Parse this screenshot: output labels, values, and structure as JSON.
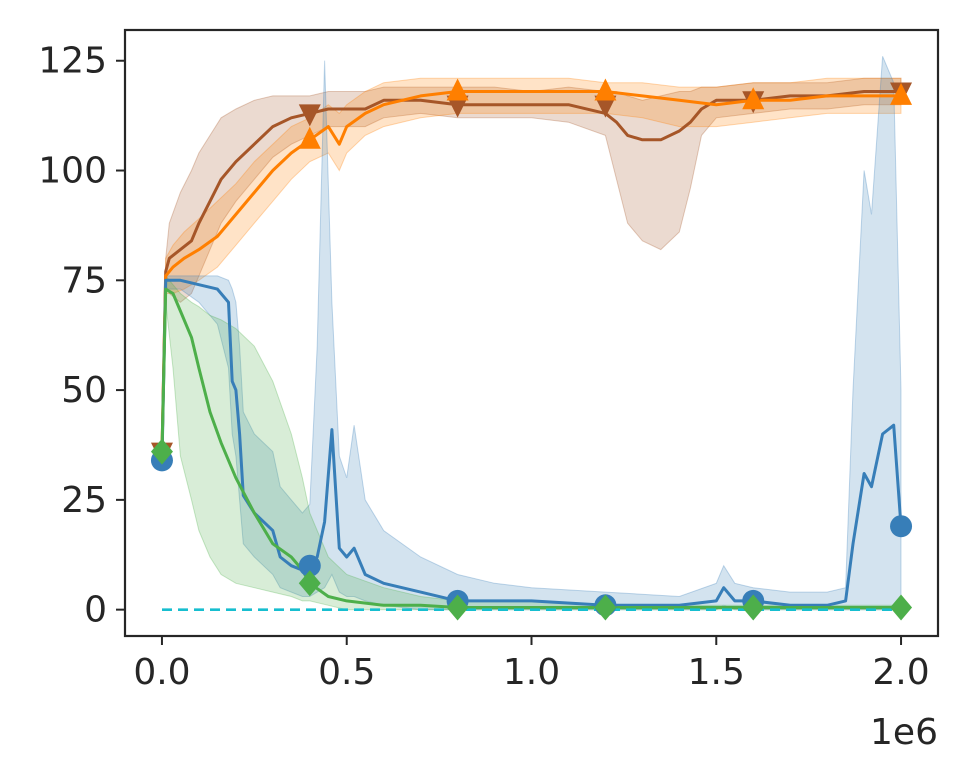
{
  "chart_data": {
    "type": "line",
    "title": "",
    "xlabel": "",
    "ylabel": "",
    "x_offset_text": "1e6",
    "xlim": [
      -0.1,
      2.1
    ],
    "ylim": [
      -6,
      132
    ],
    "xticks": [
      0.0,
      0.5,
      1.0,
      1.5,
      2.0
    ],
    "xtick_labels": [
      "0.0",
      "0.5",
      "1.0",
      "1.5",
      "2.0"
    ],
    "yticks": [
      0,
      25,
      50,
      75,
      100,
      125
    ],
    "ytick_labels": [
      "0",
      "25",
      "50",
      "75",
      "100",
      "125"
    ],
    "grid": false,
    "legend": "none",
    "series": [
      {
        "color": "#a65628",
        "marker": "triangle-down",
        "x": [
          0,
          0.01,
          0.02,
          0.05,
          0.08,
          0.1,
          0.13,
          0.16,
          0.2,
          0.25,
          0.3,
          0.35,
          0.4,
          0.45,
          0.5,
          0.55,
          0.6,
          0.7,
          0.8,
          0.9,
          1.0,
          1.1,
          1.2,
          1.23,
          1.26,
          1.3,
          1.35,
          1.4,
          1.43,
          1.46,
          1.5,
          1.6,
          1.7,
          1.8,
          1.9,
          2.0
        ],
        "y": [
          36,
          77,
          80,
          82,
          84,
          88,
          93,
          98,
          102,
          106,
          110,
          112,
          113,
          114,
          114,
          114,
          116,
          116,
          115,
          115,
          115,
          115,
          113,
          111,
          108,
          107,
          107,
          109,
          111,
          114,
          116,
          116,
          117,
          117,
          118,
          118
        ],
        "lower": [
          36,
          74,
          72,
          70,
          72,
          76,
          82,
          88,
          93,
          98,
          103,
          106,
          108,
          110,
          110,
          110,
          112,
          113,
          112,
          112,
          112,
          111,
          108,
          98,
          88,
          84,
          82,
          86,
          96,
          108,
          112,
          113,
          114,
          114,
          115,
          115
        ],
        "upper": [
          36,
          80,
          88,
          95,
          100,
          104,
          108,
          112,
          114,
          116,
          117,
          117,
          117,
          118,
          118,
          118,
          119,
          119,
          119,
          119,
          118,
          119,
          118,
          118,
          117,
          116,
          117,
          118,
          118,
          119,
          119,
          120,
          120,
          120,
          121,
          121
        ],
        "markers_x": [
          0,
          0.4,
          0.8,
          1.2,
          1.6,
          2.0
        ],
        "markers_y": [
          36,
          113,
          115,
          115,
          116,
          118
        ]
      },
      {
        "color": "#ff7f00",
        "marker": "triangle-up",
        "x": [
          0,
          0.01,
          0.03,
          0.06,
          0.1,
          0.15,
          0.2,
          0.25,
          0.3,
          0.35,
          0.4,
          0.45,
          0.48,
          0.5,
          0.55,
          0.6,
          0.7,
          0.8,
          0.9,
          1.0,
          1.1,
          1.2,
          1.3,
          1.4,
          1.5,
          1.6,
          1.7,
          1.8,
          1.9,
          2.0
        ],
        "y": [
          36,
          76,
          78,
          80,
          82,
          85,
          90,
          95,
          100,
          104,
          107,
          110,
          106,
          110,
          113,
          115,
          117,
          118,
          118,
          118,
          118,
          118,
          117,
          116,
          115,
          116,
          116,
          117,
          117,
          117
        ],
        "lower": [
          36,
          72,
          72,
          73,
          75,
          78,
          83,
          88,
          93,
          98,
          102,
          104,
          100,
          104,
          108,
          110,
          112,
          113,
          113,
          113,
          113,
          113,
          112,
          110,
          110,
          111,
          112,
          113,
          113,
          113
        ],
        "upper": [
          36,
          80,
          83,
          86,
          89,
          93,
          97,
          102,
          106,
          110,
          112,
          115,
          113,
          115,
          118,
          120,
          121,
          121,
          121,
          121,
          121,
          120,
          120,
          119,
          119,
          120,
          120,
          121,
          121,
          121
        ],
        "markers_x": [
          0,
          0.4,
          0.8,
          1.2,
          1.6,
          2.0
        ],
        "markers_y": [
          36,
          107,
          118,
          118,
          116,
          117
        ]
      },
      {
        "color": "#377eb8",
        "marker": "circle",
        "x": [
          0,
          0.01,
          0.05,
          0.1,
          0.15,
          0.18,
          0.19,
          0.2,
          0.21,
          0.22,
          0.25,
          0.3,
          0.32,
          0.35,
          0.38,
          0.4,
          0.42,
          0.44,
          0.46,
          0.48,
          0.5,
          0.52,
          0.55,
          0.6,
          0.7,
          0.8,
          0.9,
          1.0,
          1.2,
          1.4,
          1.5,
          1.52,
          1.55,
          1.6,
          1.7,
          1.8,
          1.85,
          1.87,
          1.9,
          1.92,
          1.95,
          1.98,
          2.0
        ],
        "y": [
          34,
          75,
          75,
          74,
          73,
          70,
          52,
          50,
          40,
          26,
          22,
          18,
          12,
          10,
          9,
          10,
          12,
          20,
          41,
          14,
          12,
          14,
          8,
          6,
          4,
          2,
          2,
          2,
          1,
          1,
          2,
          5,
          2,
          2,
          1,
          1,
          2,
          15,
          31,
          28,
          40,
          42,
          19
        ],
        "lower": [
          34,
          73,
          73,
          70,
          65,
          55,
          40,
          35,
          25,
          15,
          12,
          8,
          5,
          4,
          3,
          3,
          4,
          5,
          8,
          4,
          3,
          3,
          2,
          1,
          0,
          0,
          0,
          0,
          0,
          0,
          0,
          1,
          0,
          0,
          0,
          0,
          0,
          0,
          0,
          0,
          0,
          0,
          0
        ],
        "upper": [
          34,
          76,
          76,
          76,
          76,
          75,
          73,
          70,
          60,
          45,
          40,
          36,
          28,
          25,
          22,
          24,
          60,
          125,
          70,
          35,
          30,
          42,
          25,
          18,
          12,
          8,
          6,
          5,
          4,
          3,
          6,
          10,
          6,
          5,
          4,
          4,
          5,
          50,
          100,
          90,
          126,
          120,
          50
        ],
        "markers_x": [
          0,
          0.4,
          0.8,
          1.2,
          1.6,
          2.0
        ],
        "markers_y": [
          34,
          10,
          2,
          1,
          2,
          19
        ]
      },
      {
        "color": "#4daf4a",
        "marker": "diamond",
        "x": [
          0,
          0.01,
          0.03,
          0.05,
          0.08,
          0.1,
          0.13,
          0.16,
          0.2,
          0.25,
          0.3,
          0.35,
          0.38,
          0.4,
          0.45,
          0.5,
          0.6,
          0.7,
          0.8,
          1.0,
          1.2,
          1.4,
          1.6,
          1.8,
          2.0
        ],
        "y": [
          36,
          73,
          72,
          68,
          62,
          55,
          45,
          38,
          30,
          22,
          15,
          12,
          9,
          6,
          3,
          2,
          1,
          1,
          0.5,
          0.5,
          0.5,
          0.5,
          0.5,
          0.5,
          0.5
        ],
        "lower": [
          36,
          70,
          55,
          35,
          25,
          18,
          12,
          8,
          6,
          5,
          4,
          3,
          2,
          2,
          1,
          0,
          0,
          0,
          0,
          0,
          0,
          0,
          0,
          0,
          0
        ],
        "upper": [
          36,
          76,
          74,
          72,
          70,
          69,
          67,
          66,
          64,
          60,
          52,
          40,
          30,
          22,
          12,
          8,
          5,
          3,
          2,
          2,
          1,
          1,
          1,
          1,
          1
        ],
        "markers_x": [
          0,
          0.4,
          0.8,
          1.2,
          1.6,
          2.0
        ],
        "markers_y": [
          36,
          6,
          0.5,
          0.5,
          0.5,
          0.5
        ]
      },
      {
        "color": "#17becf",
        "style": "dashed",
        "x": [
          0,
          2.0
        ],
        "y": [
          0,
          0
        ]
      }
    ]
  }
}
